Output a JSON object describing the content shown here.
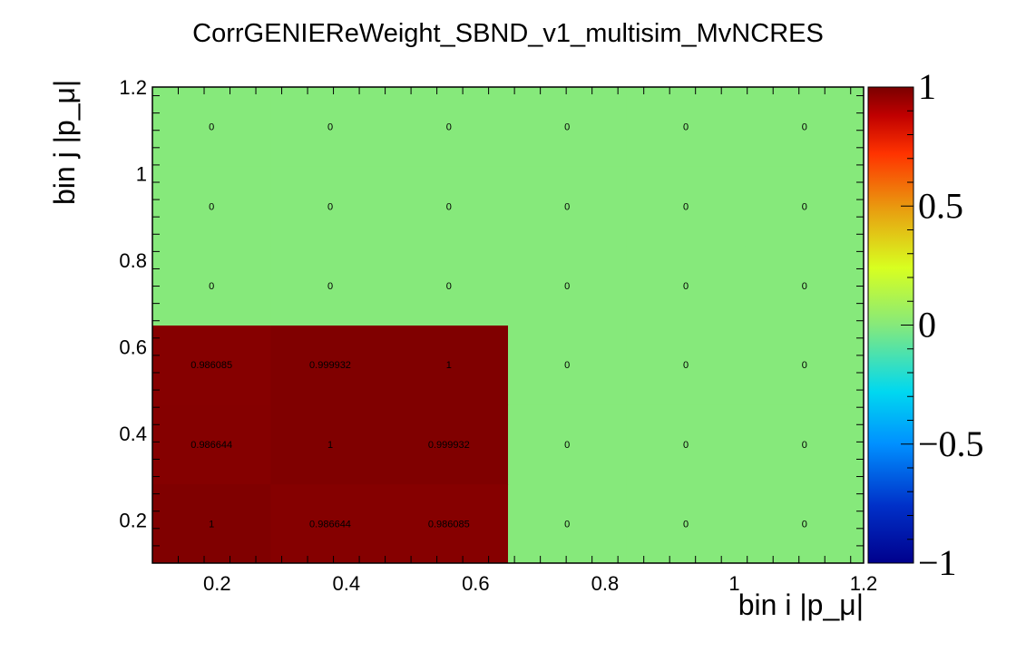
{
  "chart_data": {
    "type": "heatmap",
    "title": "CorrGENIEReWeight_SBND_v1_multisim_MvNCRES",
    "xlabel": "bin i |p_μ|",
    "ylabel": "bin j |p_μ|",
    "xlim": [
      0.1,
      1.2
    ],
    "ylim": [
      0.1,
      1.2
    ],
    "x_ticks": [
      "0.2",
      "0.4",
      "0.6",
      "0.8",
      "1",
      "1.2"
    ],
    "y_ticks": [
      "0.2",
      "0.4",
      "0.6",
      "0.8",
      "1",
      "1.2"
    ],
    "x_bin_edges": [
      0.1,
      0.283,
      0.467,
      0.65,
      0.833,
      1.017,
      1.2
    ],
    "y_bin_edges": [
      0.1,
      0.283,
      0.467,
      0.65,
      0.833,
      1.017,
      1.2
    ],
    "z_range": [
      -1,
      1
    ],
    "colorbar_ticks": [
      "1",
      "0.5",
      "0",
      "−0.5",
      "−1"
    ],
    "cells": [
      [
        1,
        0.986644,
        0.986085,
        0,
        0,
        0
      ],
      [
        0.986644,
        1,
        0.999932,
        0,
        0,
        0
      ],
      [
        0.986085,
        0.999932,
        1,
        0,
        0,
        0
      ],
      [
        0,
        0,
        0,
        0,
        0,
        0
      ],
      [
        0,
        0,
        0,
        0,
        0,
        0
      ],
      [
        0,
        0,
        0,
        0,
        0,
        0
      ]
    ],
    "cell_labels": [
      [
        "1",
        "0.986644",
        "0.986085",
        "0",
        "0",
        "0"
      ],
      [
        "0.986644",
        "1",
        "0.999932",
        "0",
        "0",
        "0"
      ],
      [
        "0.986085",
        "0.999932",
        "1",
        "0",
        "0",
        "0"
      ],
      [
        "0",
        "0",
        "0",
        "0",
        "0",
        "0"
      ],
      [
        "0",
        "0",
        "0",
        "0",
        "0",
        "0"
      ],
      [
        "0",
        "0",
        "0",
        "0",
        "0",
        "0"
      ]
    ]
  }
}
